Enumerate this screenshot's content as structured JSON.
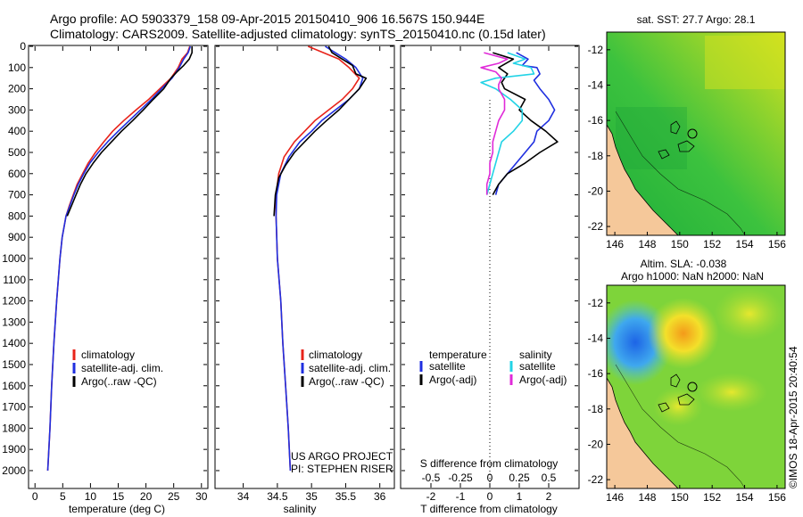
{
  "header": {
    "line1": "Argo profile: AO 5903379_158 09-Apr-2015 20150410_906 16.567S 150.944E",
    "line2": "Climatology: CARS2009. Satellite-adjusted climatology: synTS_20150410.nc (0.15d later)"
  },
  "colors": {
    "climatology": "#e8231a",
    "satellite": "#1f2fe0",
    "argo": "#000000",
    "sat_salinity": "#22d3e6",
    "argo_salinity": "#e02ad8",
    "land": "#f5c89a"
  },
  "chart_data": [
    {
      "id": "temperature",
      "type": "line",
      "xlabel": "temperature (deg C)",
      "ylabel": "",
      "xlim": [
        -1,
        31
      ],
      "ylim": [
        0,
        2080
      ],
      "y_inverted": true,
      "xticks": [
        "0",
        "5",
        "10",
        "15",
        "20",
        "25",
        "30"
      ],
      "yticks": [
        "0",
        "100",
        "200",
        "300",
        "400",
        "500",
        "600",
        "700",
        "800",
        "900",
        "1000",
        "1100",
        "1200",
        "1300",
        "1400",
        "1500",
        "1600",
        "1700",
        "1800",
        "1900",
        "2000"
      ],
      "legend": {
        "position": "center-right",
        "entries": [
          "climatology",
          "satellite-adj. clim.",
          "Argo(..raw -QC)"
        ]
      },
      "series": [
        {
          "name": "climatology",
          "color": "climatology",
          "points": [
            [
              27.9,
              0
            ],
            [
              27.5,
              30
            ],
            [
              26.5,
              60
            ],
            [
              25.8,
              100
            ],
            [
              24.5,
              150
            ],
            [
              22.5,
              200
            ],
            [
              20.5,
              250
            ],
            [
              18.2,
              300
            ],
            [
              16,
              350
            ],
            [
              14,
              400
            ],
            [
              12.4,
              450
            ],
            [
              10.9,
              500
            ],
            [
              9.6,
              550
            ],
            [
              8.6,
              600
            ],
            [
              7.6,
              650
            ],
            [
              6.9,
              700
            ],
            [
              6.2,
              750
            ],
            [
              5.6,
              800
            ],
            [
              4.9,
              900
            ],
            [
              4.5,
              1000
            ],
            [
              3.9,
              1200
            ],
            [
              3.4,
              1400
            ],
            [
              3.0,
              1600
            ],
            [
              2.7,
              1800
            ],
            [
              2.3,
              2000
            ]
          ]
        },
        {
          "name": "satellite-adj. clim.",
          "color": "satellite",
          "points": [
            [
              28.0,
              0
            ],
            [
              27.6,
              30
            ],
            [
              26.8,
              60
            ],
            [
              26,
              100
            ],
            [
              24.7,
              150
            ],
            [
              22.8,
              200
            ],
            [
              21,
              250
            ],
            [
              19,
              300
            ],
            [
              17,
              350
            ],
            [
              15,
              400
            ],
            [
              13.1,
              450
            ],
            [
              11.4,
              500
            ],
            [
              9.9,
              550
            ],
            [
              8.8,
              600
            ],
            [
              7.8,
              650
            ],
            [
              7,
              700
            ],
            [
              6.3,
              750
            ],
            [
              5.6,
              800
            ],
            [
              4.9,
              900
            ],
            [
              4.5,
              1000
            ],
            [
              3.9,
              1200
            ],
            [
              3.4,
              1400
            ],
            [
              3.0,
              1600
            ],
            [
              2.7,
              1800
            ],
            [
              2.3,
              2000
            ]
          ]
        },
        {
          "name": "Argo(..raw -QC)",
          "color": "argo",
          "points": [
            [
              28.3,
              0
            ],
            [
              28.3,
              30
            ],
            [
              27.8,
              60
            ],
            [
              26.8,
              90
            ],
            [
              25.6,
              120
            ],
            [
              24.5,
              150
            ],
            [
              23.2,
              200
            ],
            [
              21.3,
              250
            ],
            [
              19.5,
              300
            ],
            [
              17.6,
              350
            ],
            [
              15.6,
              400
            ],
            [
              13.8,
              450
            ],
            [
              12,
              500
            ],
            [
              10.5,
              550
            ],
            [
              9.2,
              600
            ],
            [
              8.2,
              650
            ],
            [
              7.4,
              700
            ],
            [
              6.6,
              750
            ],
            [
              5.8,
              800
            ]
          ]
        }
      ]
    },
    {
      "id": "salinity",
      "type": "line",
      "xlabel": "salinity",
      "xlim": [
        33.6,
        36.2
      ],
      "ylim": [
        0,
        2080
      ],
      "y_inverted": true,
      "xticks": [
        "34",
        "34.5",
        "35",
        "35.5",
        "36"
      ],
      "legend": {
        "position": "center-right",
        "entries": [
          "climatology",
          "satellite-adj. clim.",
          "Argo(..raw -QC)"
        ]
      },
      "annotations": [
        "US ARGO PROJECT",
        "PI: STEPHEN RISER"
      ],
      "series": [
        {
          "name": "climatology",
          "color": "climatology",
          "points": [
            [
              34.95,
              0
            ],
            [
              35.1,
              20
            ],
            [
              35.4,
              60
            ],
            [
              35.55,
              100
            ],
            [
              35.7,
              150
            ],
            [
              35.6,
              200
            ],
            [
              35.45,
              250
            ],
            [
              35.25,
              300
            ],
            [
              35.05,
              350
            ],
            [
              34.9,
              400
            ],
            [
              34.75,
              450
            ],
            [
              34.6,
              520
            ],
            [
              34.52,
              600
            ],
            [
              34.48,
              700
            ],
            [
              34.48,
              800
            ],
            [
              34.5,
              1000
            ],
            [
              34.55,
              1200
            ],
            [
              34.58,
              1400
            ],
            [
              34.62,
              1600
            ],
            [
              34.66,
              1800
            ],
            [
              34.69,
              2000
            ]
          ]
        },
        {
          "name": "satellite-adj. clim.",
          "color": "satellite",
          "points": [
            [
              35.2,
              0
            ],
            [
              35.3,
              20
            ],
            [
              35.5,
              60
            ],
            [
              35.65,
              100
            ],
            [
              35.75,
              150
            ],
            [
              35.7,
              200
            ],
            [
              35.55,
              250
            ],
            [
              35.35,
              300
            ],
            [
              35.15,
              350
            ],
            [
              35.0,
              400
            ],
            [
              34.83,
              450
            ],
            [
              34.67,
              520
            ],
            [
              34.55,
              600
            ],
            [
              34.49,
              700
            ],
            [
              34.48,
              800
            ],
            [
              34.5,
              1000
            ],
            [
              34.55,
              1200
            ],
            [
              34.58,
              1400
            ],
            [
              34.62,
              1600
            ],
            [
              34.66,
              1800
            ],
            [
              34.69,
              2000
            ]
          ]
        },
        {
          "name": "Argo(..raw -QC)",
          "color": "argo",
          "points": [
            [
              35.25,
              0
            ],
            [
              35.3,
              30
            ],
            [
              35.45,
              60
            ],
            [
              35.6,
              90
            ],
            [
              35.65,
              130
            ],
            [
              35.8,
              150
            ],
            [
              35.7,
              200
            ],
            [
              35.55,
              250
            ],
            [
              35.4,
              300
            ],
            [
              35.22,
              350
            ],
            [
              35.05,
              400
            ],
            [
              34.9,
              450
            ],
            [
              34.75,
              500
            ],
            [
              34.62,
              560
            ],
            [
              34.52,
              620
            ],
            [
              34.47,
              700
            ],
            [
              34.45,
              800
            ]
          ]
        }
      ]
    },
    {
      "id": "difference",
      "type": "line",
      "xlabel": "T difference from climatology",
      "top_axis_label": "S difference from climatology",
      "xlim": [
        -3,
        3
      ],
      "ylim": [
        0,
        2080
      ],
      "y_inverted": true,
      "xticks": [
        "-2",
        "-1",
        "0",
        "1",
        "2"
      ],
      "top_xticks": [
        "-0.5",
        "-0.25",
        "0",
        "0.25",
        "0.5"
      ],
      "legend": {
        "position": "center",
        "groups": [
          {
            "title": "temperature",
            "entries": [
              "satellite",
              "Argo(-adj)"
            ]
          },
          {
            "title": "salinity",
            "entries": [
              "satellite",
              "Argo(-adj)"
            ]
          }
        ]
      },
      "series": [
        {
          "name": "temperature satellite",
          "color": "satellite",
          "points": [
            [
              0.9,
              30
            ],
            [
              1.3,
              60
            ],
            [
              1.1,
              90
            ],
            [
              1.6,
              100
            ],
            [
              1.7,
              130
            ],
            [
              1.5,
              160
            ],
            [
              1.7,
              200
            ],
            [
              2.0,
              250
            ],
            [
              2.2,
              300
            ],
            [
              2.0,
              350
            ],
            [
              1.6,
              400
            ],
            [
              1.5,
              450
            ],
            [
              1.2,
              500
            ],
            [
              0.9,
              550
            ],
            [
              0.6,
              600
            ],
            [
              0.3,
              650
            ],
            [
              0.2,
              700
            ]
          ]
        },
        {
          "name": "temperature Argo(-adj)",
          "color": "argo",
          "points": [
            [
              0.1,
              30
            ],
            [
              0.8,
              60
            ],
            [
              0.3,
              100
            ],
            [
              0.6,
              130
            ],
            [
              0.4,
              170
            ],
            [
              0.5,
              200
            ],
            [
              1.2,
              250
            ],
            [
              1.0,
              300
            ],
            [
              1.4,
              350
            ],
            [
              1.9,
              400
            ],
            [
              2.3,
              450
            ],
            [
              1.7,
              500
            ],
            [
              1.2,
              550
            ],
            [
              0.6,
              600
            ],
            [
              0.3,
              650
            ],
            [
              0.1,
              700
            ]
          ]
        },
        {
          "name": "salinity satellite",
          "color": "sat_salinity",
          "points": [
            [
              0.6,
              30
            ],
            [
              1.2,
              60
            ],
            [
              0.8,
              80
            ],
            [
              1.4,
              100
            ],
            [
              1.5,
              130
            ],
            [
              0.2,
              150
            ],
            [
              -0.3,
              170
            ],
            [
              0.2,
              200
            ],
            [
              0.7,
              250
            ],
            [
              1.1,
              300
            ],
            [
              1.1,
              350
            ],
            [
              0.8,
              400
            ],
            [
              0.4,
              450
            ],
            [
              0.3,
              500
            ],
            [
              0.2,
              550
            ],
            [
              0.1,
              600
            ],
            [
              0,
              650
            ],
            [
              -0.1,
              700
            ]
          ]
        },
        {
          "name": "salinity Argo(-adj)",
          "color": "argo_salinity",
          "points": [
            [
              -0.2,
              30
            ],
            [
              0.6,
              60
            ],
            [
              0.3,
              80
            ],
            [
              -0.3,
              100
            ],
            [
              0.2,
              120
            ],
            [
              0.4,
              150
            ],
            [
              0.3,
              180
            ],
            [
              0.3,
              200
            ],
            [
              0.5,
              250
            ],
            [
              0.5,
              300
            ],
            [
              0.3,
              350
            ],
            [
              0.2,
              400
            ],
            [
              0.1,
              450
            ],
            [
              0.1,
              500
            ],
            [
              0.0,
              550
            ],
            [
              0,
              600
            ],
            [
              -0.1,
              650
            ],
            [
              -0.1,
              700
            ]
          ]
        }
      ]
    },
    {
      "id": "sst-map",
      "type": "heatmap",
      "title": "sat. SST: 27.7 Argo: 28.1",
      "xlim": [
        145.5,
        156.5
      ],
      "ylim": [
        -22.5,
        -11
      ],
      "xticks": [
        "146",
        "148",
        "150",
        "152",
        "154",
        "156"
      ],
      "yticks": [
        "-12",
        "-14",
        "-16",
        "-18",
        "-20",
        "-22"
      ],
      "argo_position": [
        150.944,
        -16.567
      ]
    },
    {
      "id": "sla-map",
      "type": "heatmap",
      "title": "Altim. SLA: -0.038",
      "subtitle": "Argo h1000: NaN h2000: NaN",
      "xlim": [
        145.5,
        156.5
      ],
      "ylim": [
        -22.5,
        -11
      ],
      "xticks": [
        "146",
        "148",
        "150",
        "152",
        "154",
        "156"
      ],
      "yticks": [
        "-12",
        "-14",
        "-16",
        "-18",
        "-20",
        "-22"
      ],
      "argo_position": [
        150.944,
        -16.567
      ]
    }
  ],
  "credit": "©IMOS 18-Apr-2015 20:40:54"
}
